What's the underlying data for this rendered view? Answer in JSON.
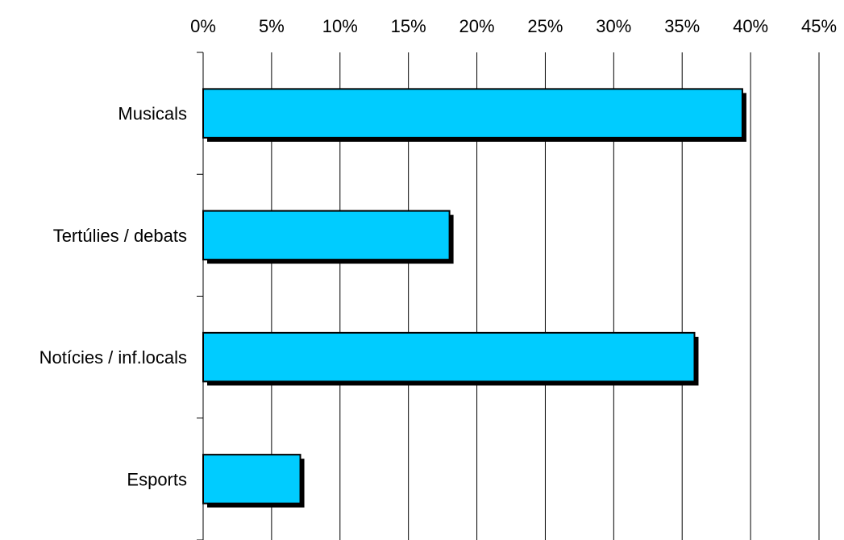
{
  "chart_data": {
    "type": "bar",
    "orientation": "horizontal",
    "categories": [
      "Musicals",
      "Tertúlies / debats",
      "Notícies / inf.locals",
      "Esports"
    ],
    "values": [
      39.4,
      18.0,
      35.9,
      7.1
    ],
    "value_unit": "%",
    "xlim": [
      0,
      45
    ],
    "x_ticks": [
      0,
      5,
      10,
      15,
      20,
      25,
      30,
      35,
      40,
      45
    ],
    "x_tick_labels": [
      "0%",
      "5%",
      "10%",
      "15%",
      "20%",
      "25%",
      "30%",
      "35%",
      "40%",
      "45%"
    ],
    "x_axis_position": "top",
    "title": "",
    "xlabel": "",
    "ylabel": "",
    "grid": true,
    "legend": "none",
    "colors": {
      "bar_fill": "#00CCFF",
      "bar_shadow": "#000000",
      "grid": "#000000"
    }
  }
}
